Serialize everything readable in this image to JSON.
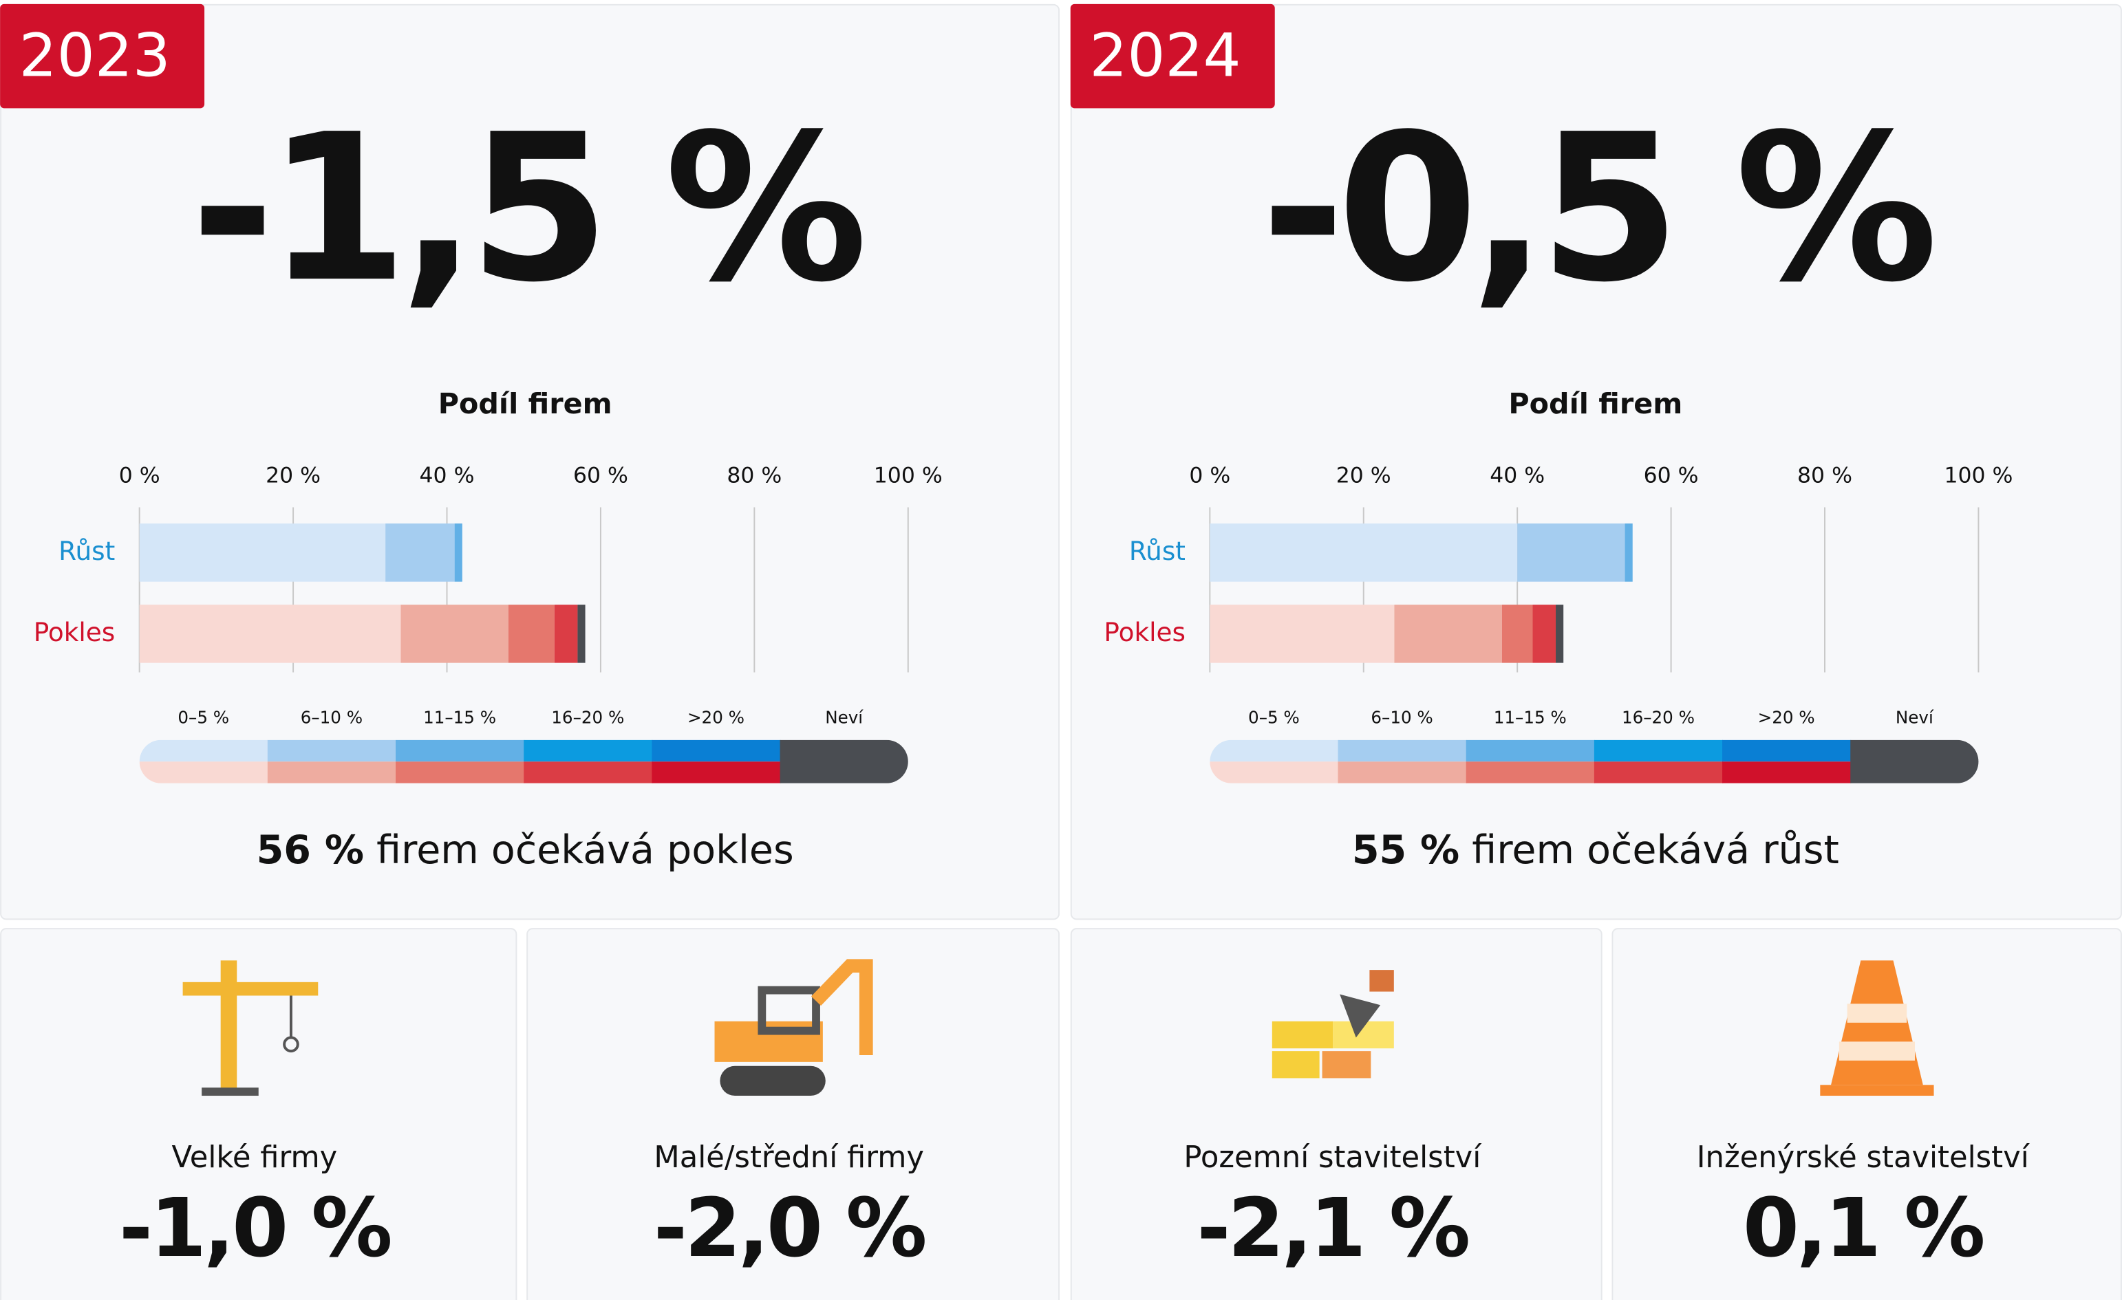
{
  "chart_data": [
    {
      "type": "stacked_barh",
      "year": "2023",
      "headline": "-1,5 %",
      "title": "Podíl firem",
      "categories": [
        "Růst",
        "Pokles"
      ],
      "category_colors": [
        "#1a8fd0",
        "#d0112b"
      ],
      "xlim": [
        0,
        100
      ],
      "xticks": [
        {
          "value": 0,
          "label": "0 %"
        },
        {
          "value": 20,
          "label": "20 %"
        },
        {
          "value": 40,
          "label": "40 %"
        },
        {
          "value": 60,
          "label": "60 %"
        },
        {
          "value": 80,
          "label": "80 %"
        },
        {
          "value": 100,
          "label": "100 %"
        }
      ],
      "grid": true,
      "series": [
        {
          "name": "0–5 %",
          "colors": [
            "#d4e6f8",
            "#f9d9d3"
          ],
          "values": [
            32,
            34
          ]
        },
        {
          "name": "6–10 %",
          "colors": [
            "#a5cdf0",
            "#eeaca0"
          ],
          "values": [
            9,
            14
          ]
        },
        {
          "name": "11–15 %",
          "colors": [
            "#62b0e6",
            "#e5776d"
          ],
          "values": [
            1,
            6
          ]
        },
        {
          "name": "16–20 %",
          "colors": [
            "#0c9be0",
            "#db3d45"
          ],
          "values": [
            0,
            3
          ]
        },
        {
          "name": ">20 %",
          "colors": [
            "#0a7fd4",
            "#d0112b"
          ],
          "values": [
            0,
            0
          ]
        },
        {
          "name": "Neví",
          "colors": [
            "#4a4d52",
            "#4a4d52"
          ],
          "values": [
            0,
            1
          ]
        }
      ],
      "summary": {
        "bold": "56 %",
        "text": "firem očekává pokles"
      }
    },
    {
      "type": "stacked_barh",
      "year": "2024",
      "headline": "-0,5 %",
      "title": "Podíl firem",
      "categories": [
        "Růst",
        "Pokles"
      ],
      "category_colors": [
        "#1a8fd0",
        "#d0112b"
      ],
      "xlim": [
        0,
        100
      ],
      "xticks": [
        {
          "value": 0,
          "label": "0 %"
        },
        {
          "value": 20,
          "label": "20 %"
        },
        {
          "value": 40,
          "label": "40 %"
        },
        {
          "value": 60,
          "label": "60 %"
        },
        {
          "value": 80,
          "label": "80 %"
        },
        {
          "value": 100,
          "label": "100 %"
        }
      ],
      "grid": true,
      "series": [
        {
          "name": "0–5 %",
          "colors": [
            "#d4e6f8",
            "#f9d9d3"
          ],
          "values": [
            40,
            24
          ]
        },
        {
          "name": "6–10 %",
          "colors": [
            "#a5cdf0",
            "#eeaca0"
          ],
          "values": [
            14,
            14
          ]
        },
        {
          "name": "11–15 %",
          "colors": [
            "#62b0e6",
            "#e5776d"
          ],
          "values": [
            1,
            4
          ]
        },
        {
          "name": "16–20 %",
          "colors": [
            "#0c9be0",
            "#db3d45"
          ],
          "values": [
            0,
            3
          ]
        },
        {
          "name": ">20 %",
          "colors": [
            "#0a7fd4",
            "#d0112b"
          ],
          "values": [
            0,
            0
          ]
        },
        {
          "name": "Neví",
          "colors": [
            "#4a4d52",
            "#4a4d52"
          ],
          "values": [
            0,
            1
          ]
        }
      ],
      "summary": {
        "bold": "55 %",
        "text": "firem očekává růst"
      }
    }
  ],
  "cards": [
    {
      "label": "Velké firmy",
      "value": "-1,0 %"
    },
    {
      "label": "Malé/střední firmy",
      "value": "-2,0 %"
    },
    {
      "label": "Pozemní stavitelství",
      "value": "-2,1 %"
    },
    {
      "label": "Inženýrské stavitelství",
      "value": "0,1 %"
    }
  ]
}
